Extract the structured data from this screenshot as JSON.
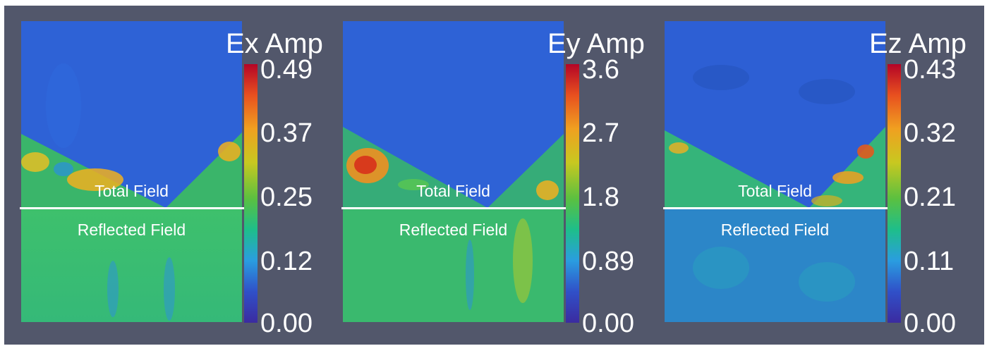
{
  "panels": [
    {
      "title": "Ex Amp",
      "ticks": [
        "0.49",
        "0.37",
        "0.25",
        "0.12",
        "0.00"
      ],
      "region_upper": "Total Field",
      "region_lower": "Reflected Field",
      "hot_spot_color": "#f0b020"
    },
    {
      "title": "Ey Amp",
      "ticks": [
        "3.6",
        "2.7",
        "1.8",
        "0.89",
        "0.00"
      ],
      "region_upper": "Total Field",
      "region_lower": "Reflected Field",
      "hot_spot_color": "#d83a1c"
    },
    {
      "title": "Ez Amp",
      "ticks": [
        "0.43",
        "0.32",
        "0.21",
        "0.11",
        "0.00"
      ],
      "region_upper": "Total Field",
      "region_lower": "Reflected Field",
      "hot_spot_color": "#e05a1e"
    }
  ],
  "colors": {
    "background": "#52576b",
    "field_blue": "#2b63d9",
    "field_green": "#3bc46a",
    "colormap_max": "#b40426",
    "colormap_min": "#3b2ba0"
  }
}
